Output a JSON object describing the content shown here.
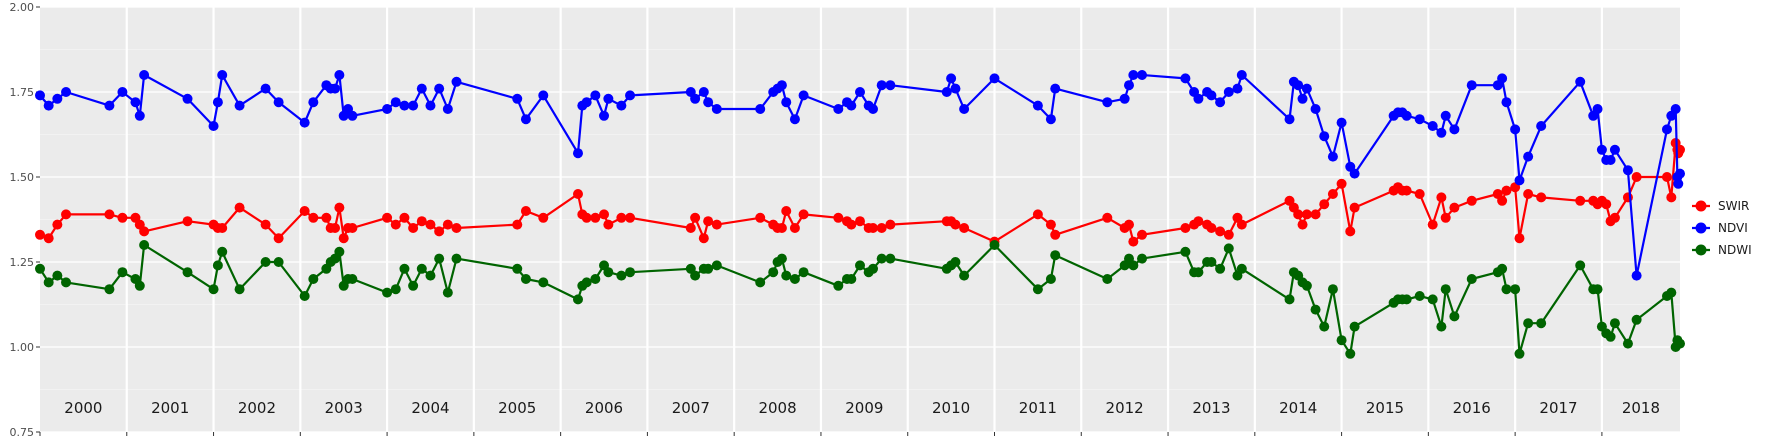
{
  "chart_data": {
    "type": "line",
    "title": "",
    "xlabel": "",
    "ylabel": "",
    "xlim": [
      2000.0,
      2018.9
    ],
    "ylim": [
      0.75,
      2.0
    ],
    "y_ticks": [
      "0.75",
      "1.00",
      "1.25",
      "1.50",
      "1.75",
      "2.00"
    ],
    "year_labels": [
      "2000",
      "2001",
      "2002",
      "2003",
      "2004",
      "2005",
      "2006",
      "2007",
      "2008",
      "2009",
      "2010",
      "2011",
      "2012",
      "2013",
      "2014",
      "2015",
      "2016",
      "2017",
      "2018"
    ],
    "legend_position": "right",
    "grid": true,
    "series": [
      {
        "name": "SWIR",
        "color": "#ff0000",
        "x": [
          2000.0,
          2000.1,
          2000.2,
          2000.3,
          2000.8,
          2000.95,
          2001.1,
          2001.15,
          2001.2,
          2001.7,
          2002.0,
          2002.05,
          2002.1,
          2002.3,
          2002.6,
          2002.75,
          2003.05,
          2003.15,
          2003.3,
          2003.35,
          2003.4,
          2003.45,
          2003.5,
          2003.55,
          2003.6,
          2004.0,
          2004.1,
          2004.2,
          2004.3,
          2004.4,
          2004.5,
          2004.6,
          2004.7,
          2004.8,
          2005.5,
          2005.6,
          2005.8,
          2006.2,
          2006.25,
          2006.3,
          2006.4,
          2006.5,
          2006.55,
          2006.7,
          2006.8,
          2007.5,
          2007.55,
          2007.65,
          2007.7,
          2007.8,
          2008.3,
          2008.45,
          2008.5,
          2008.55,
          2008.6,
          2008.7,
          2008.8,
          2009.2,
          2009.3,
          2009.35,
          2009.45,
          2009.55,
          2009.6,
          2009.7,
          2009.8,
          2010.45,
          2010.5,
          2010.55,
          2010.65,
          2011.0,
          2011.5,
          2011.65,
          2011.7,
          2012.3,
          2012.5,
          2012.55,
          2012.6,
          2012.7,
          2013.2,
          2013.3,
          2013.35,
          2013.45,
          2013.5,
          2013.6,
          2013.7,
          2013.8,
          2013.85,
          2014.4,
          2014.45,
          2014.5,
          2014.55,
          2014.6,
          2014.7,
          2014.8,
          2014.9,
          2015.0,
          2015.1,
          2015.15,
          2015.6,
          2015.65,
          2015.7,
          2015.75,
          2015.9,
          2016.05,
          2016.15,
          2016.2,
          2016.3,
          2016.5,
          2016.8,
          2016.85,
          2016.9,
          2017.0,
          2017.05,
          2017.15,
          2017.3,
          2017.75,
          2017.9,
          2017.95,
          2018.0,
          2018.05,
          2018.1,
          2018.15,
          2018.3,
          2018.4,
          2018.75,
          2018.8,
          2018.85,
          2018.87,
          2018.88,
          2018.9
        ],
        "values": [
          1.33,
          1.32,
          1.36,
          1.39,
          1.39,
          1.38,
          1.38,
          1.36,
          1.34,
          1.37,
          1.36,
          1.35,
          1.35,
          1.41,
          1.36,
          1.32,
          1.4,
          1.38,
          1.38,
          1.35,
          1.35,
          1.41,
          1.32,
          1.35,
          1.35,
          1.38,
          1.36,
          1.38,
          1.35,
          1.37,
          1.36,
          1.34,
          1.36,
          1.35,
          1.36,
          1.4,
          1.38,
          1.45,
          1.39,
          1.38,
          1.38,
          1.39,
          1.36,
          1.38,
          1.38,
          1.35,
          1.38,
          1.32,
          1.37,
          1.36,
          1.38,
          1.36,
          1.35,
          1.35,
          1.4,
          1.35,
          1.39,
          1.38,
          1.37,
          1.36,
          1.37,
          1.35,
          1.35,
          1.35,
          1.36,
          1.37,
          1.37,
          1.36,
          1.35,
          1.31,
          1.39,
          1.36,
          1.33,
          1.38,
          1.35,
          1.36,
          1.31,
          1.33,
          1.35,
          1.36,
          1.37,
          1.36,
          1.35,
          1.34,
          1.33,
          1.38,
          1.36,
          1.43,
          1.41,
          1.39,
          1.36,
          1.39,
          1.39,
          1.42,
          1.45,
          1.48,
          1.34,
          1.41,
          1.46,
          1.47,
          1.46,
          1.46,
          1.45,
          1.36,
          1.44,
          1.38,
          1.41,
          1.43,
          1.45,
          1.43,
          1.46,
          1.47,
          1.32,
          1.45,
          1.44,
          1.43,
          1.43,
          1.42,
          1.43,
          1.42,
          1.37,
          1.38,
          1.44,
          1.5,
          1.5,
          1.44,
          1.6,
          1.58,
          1.57,
          1.58
        ],
        "show_points": true
      },
      {
        "name": "NDVI",
        "color": "#0000ff",
        "x": [
          2000.0,
          2000.1,
          2000.2,
          2000.3,
          2000.8,
          2000.95,
          2001.1,
          2001.15,
          2001.2,
          2001.7,
          2002.0,
          2002.05,
          2002.1,
          2002.3,
          2002.6,
          2002.75,
          2003.05,
          2003.15,
          2003.3,
          2003.35,
          2003.4,
          2003.45,
          2003.5,
          2003.55,
          2003.6,
          2004.0,
          2004.1,
          2004.2,
          2004.3,
          2004.4,
          2004.5,
          2004.6,
          2004.7,
          2004.8,
          2005.5,
          2005.6,
          2005.8,
          2006.2,
          2006.25,
          2006.3,
          2006.4,
          2006.5,
          2006.55,
          2006.7,
          2006.8,
          2007.5,
          2007.55,
          2007.65,
          2007.7,
          2007.8,
          2008.3,
          2008.45,
          2008.5,
          2008.55,
          2008.6,
          2008.7,
          2008.8,
          2009.2,
          2009.3,
          2009.35,
          2009.45,
          2009.55,
          2009.6,
          2009.7,
          2009.8,
          2010.45,
          2010.5,
          2010.55,
          2010.65,
          2011.0,
          2011.5,
          2011.65,
          2011.7,
          2012.3,
          2012.5,
          2012.55,
          2012.6,
          2012.7,
          2013.2,
          2013.3,
          2013.35,
          2013.45,
          2013.5,
          2013.6,
          2013.7,
          2013.8,
          2013.85,
          2014.4,
          2014.45,
          2014.5,
          2014.55,
          2014.6,
          2014.7,
          2014.8,
          2014.9,
          2015.0,
          2015.1,
          2015.15,
          2015.6,
          2015.65,
          2015.7,
          2015.75,
          2015.9,
          2016.05,
          2016.15,
          2016.2,
          2016.3,
          2016.5,
          2016.8,
          2016.85,
          2016.9,
          2017.0,
          2017.05,
          2017.15,
          2017.3,
          2017.75,
          2017.9,
          2017.95,
          2018.0,
          2018.05,
          2018.1,
          2018.15,
          2018.3,
          2018.4,
          2018.75,
          2018.8,
          2018.85,
          2018.87,
          2018.88,
          2018.9
        ],
        "values": [
          1.74,
          1.71,
          1.73,
          1.75,
          1.71,
          1.75,
          1.72,
          1.68,
          1.8,
          1.73,
          1.65,
          1.72,
          1.8,
          1.71,
          1.76,
          1.72,
          1.66,
          1.72,
          1.77,
          1.76,
          1.76,
          1.8,
          1.68,
          1.7,
          1.68,
          1.7,
          1.72,
          1.71,
          1.71,
          1.76,
          1.71,
          1.76,
          1.7,
          1.78,
          1.73,
          1.67,
          1.74,
          1.57,
          1.71,
          1.72,
          1.74,
          1.68,
          1.73,
          1.71,
          1.74,
          1.75,
          1.73,
          1.75,
          1.72,
          1.7,
          1.7,
          1.75,
          1.76,
          1.77,
          1.72,
          1.67,
          1.74,
          1.7,
          1.72,
          1.71,
          1.75,
          1.71,
          1.7,
          1.77,
          1.77,
          1.75,
          1.79,
          1.76,
          1.7,
          1.79,
          1.71,
          1.67,
          1.76,
          1.72,
          1.73,
          1.77,
          1.8,
          1.8,
          1.79,
          1.75,
          1.73,
          1.75,
          1.74,
          1.72,
          1.75,
          1.76,
          1.8,
          1.67,
          1.78,
          1.77,
          1.73,
          1.76,
          1.7,
          1.62,
          1.56,
          1.66,
          1.53,
          1.51,
          1.68,
          1.69,
          1.69,
          1.68,
          1.67,
          1.65,
          1.63,
          1.68,
          1.64,
          1.77,
          1.77,
          1.79,
          1.72,
          1.64,
          1.49,
          1.56,
          1.65,
          1.78,
          1.68,
          1.7,
          1.58,
          1.55,
          1.55,
          1.58,
          1.52,
          1.21,
          1.64,
          1.68,
          1.7,
          1.5,
          1.48,
          1.51
        ],
        "show_points": true
      },
      {
        "name": "NDWI",
        "color": "#006400",
        "x": [
          2000.0,
          2000.1,
          2000.2,
          2000.3,
          2000.8,
          2000.95,
          2001.1,
          2001.15,
          2001.2,
          2001.7,
          2002.0,
          2002.05,
          2002.1,
          2002.3,
          2002.6,
          2002.75,
          2003.05,
          2003.15,
          2003.3,
          2003.35,
          2003.4,
          2003.45,
          2003.5,
          2003.55,
          2003.6,
          2004.0,
          2004.1,
          2004.2,
          2004.3,
          2004.4,
          2004.5,
          2004.6,
          2004.7,
          2004.8,
          2005.5,
          2005.6,
          2005.8,
          2006.2,
          2006.25,
          2006.3,
          2006.4,
          2006.5,
          2006.55,
          2006.7,
          2006.8,
          2007.5,
          2007.55,
          2007.65,
          2007.7,
          2007.8,
          2008.3,
          2008.45,
          2008.5,
          2008.55,
          2008.6,
          2008.7,
          2008.8,
          2009.2,
          2009.3,
          2009.35,
          2009.45,
          2009.55,
          2009.6,
          2009.7,
          2009.8,
          2010.45,
          2010.5,
          2010.55,
          2010.65,
          2011.0,
          2011.5,
          2011.65,
          2011.7,
          2012.3,
          2012.5,
          2012.55,
          2012.6,
          2012.7,
          2013.2,
          2013.3,
          2013.35,
          2013.45,
          2013.5,
          2013.6,
          2013.7,
          2013.8,
          2013.85,
          2014.4,
          2014.45,
          2014.5,
          2014.55,
          2014.6,
          2014.7,
          2014.8,
          2014.9,
          2015.0,
          2015.1,
          2015.15,
          2015.6,
          2015.65,
          2015.7,
          2015.75,
          2015.9,
          2016.05,
          2016.15,
          2016.2,
          2016.3,
          2016.5,
          2016.8,
          2016.85,
          2016.9,
          2017.0,
          2017.05,
          2017.15,
          2017.3,
          2017.75,
          2017.9,
          2017.95,
          2018.0,
          2018.05,
          2018.1,
          2018.15,
          2018.3,
          2018.4,
          2018.75,
          2018.8,
          2018.85,
          2018.87,
          2018.88,
          2018.9
        ],
        "values": [
          1.23,
          1.19,
          1.21,
          1.19,
          1.17,
          1.22,
          1.2,
          1.18,
          1.3,
          1.22,
          1.17,
          1.24,
          1.28,
          1.17,
          1.25,
          1.25,
          1.15,
          1.2,
          1.23,
          1.25,
          1.26,
          1.28,
          1.18,
          1.2,
          1.2,
          1.16,
          1.17,
          1.23,
          1.18,
          1.23,
          1.21,
          1.26,
          1.16,
          1.26,
          1.23,
          1.2,
          1.19,
          1.14,
          1.18,
          1.19,
          1.2,
          1.24,
          1.22,
          1.21,
          1.22,
          1.23,
          1.21,
          1.23,
          1.23,
          1.24,
          1.19,
          1.22,
          1.25,
          1.26,
          1.21,
          1.2,
          1.22,
          1.18,
          1.2,
          1.2,
          1.24,
          1.22,
          1.23,
          1.26,
          1.26,
          1.23,
          1.24,
          1.25,
          1.21,
          1.3,
          1.17,
          1.2,
          1.27,
          1.2,
          1.24,
          1.26,
          1.24,
          1.26,
          1.28,
          1.22,
          1.22,
          1.25,
          1.25,
          1.23,
          1.29,
          1.21,
          1.23,
          1.14,
          1.22,
          1.21,
          1.19,
          1.18,
          1.11,
          1.06,
          1.17,
          1.02,
          0.98,
          1.06,
          1.13,
          1.14,
          1.14,
          1.14,
          1.15,
          1.14,
          1.06,
          1.17,
          1.09,
          1.2,
          1.22,
          1.23,
          1.17,
          1.17,
          0.98,
          1.07,
          1.07,
          1.24,
          1.17,
          1.17,
          1.06,
          1.04,
          1.03,
          1.07,
          1.01,
          1.08,
          1.15,
          1.16,
          1.0,
          1.02,
          1.01,
          1.01
        ],
        "show_points": true
      }
    ]
  }
}
